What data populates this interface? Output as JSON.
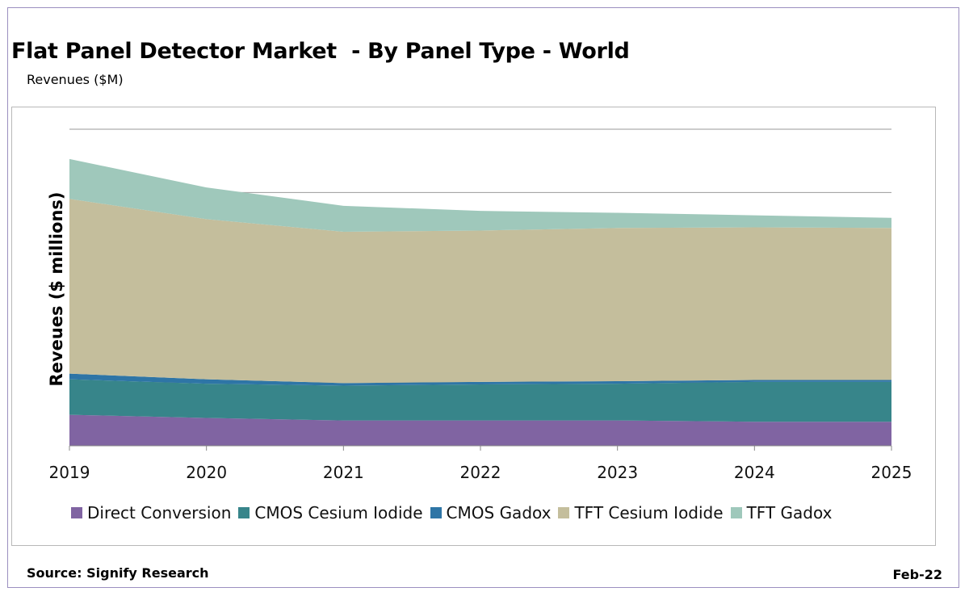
{
  "title": "Flat Panel Detector Market  - By Panel Type - World",
  "subtitle": "Revenues ($M)",
  "source": "Source: Signify Research",
  "date": "Feb-22",
  "chart_data": {
    "type": "area",
    "stacked": true,
    "ylabel": "Reveues ($ millions)",
    "x": [
      "2019",
      "2020",
      "2021",
      "2022",
      "2023",
      "2024",
      "2025"
    ],
    "ylim": [
      0,
      5
    ],
    "grid": true,
    "ytick_labels_shown": false,
    "legend_position": "bottom",
    "series": [
      {
        "name": "Direct Conversion",
        "color": "#8064a2",
        "values": [
          0.49,
          0.44,
          0.4,
          0.4,
          0.4,
          0.38,
          0.38
        ]
      },
      {
        "name": "CMOS Cesium Iodide",
        "color": "#37858a",
        "values": [
          0.56,
          0.54,
          0.55,
          0.57,
          0.58,
          0.63,
          0.63
        ]
      },
      {
        "name": "CMOS Gadox",
        "color": "#2e75a6",
        "values": [
          0.09,
          0.07,
          0.04,
          0.04,
          0.04,
          0.03,
          0.03
        ]
      },
      {
        "name": "TFT Cesium Iodide",
        "color": "#c4be9c",
        "values": [
          2.76,
          2.53,
          2.39,
          2.39,
          2.42,
          2.41,
          2.4
        ]
      },
      {
        "name": "TFT Gadox",
        "color": "#9fc8bb",
        "values": [
          0.63,
          0.5,
          0.41,
          0.31,
          0.24,
          0.19,
          0.16
        ]
      }
    ]
  }
}
